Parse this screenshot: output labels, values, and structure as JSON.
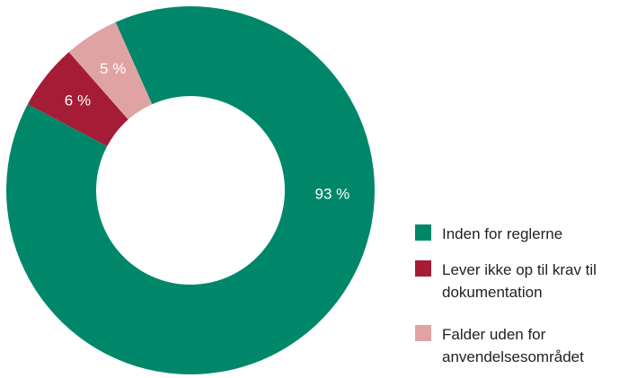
{
  "chart_data": {
    "type": "donut",
    "categories": [
      "Inden for reglerne",
      "Lever ikke op til krav til dokumentation",
      "Falder uden for anvendelsesområdet"
    ],
    "values": [
      93,
      6,
      5
    ],
    "value_labels": [
      "93 %",
      "6 %",
      "5 %"
    ],
    "colors": [
      "#00876a",
      "#a51c36",
      "#e0a3a3"
    ],
    "legend": "right"
  }
}
